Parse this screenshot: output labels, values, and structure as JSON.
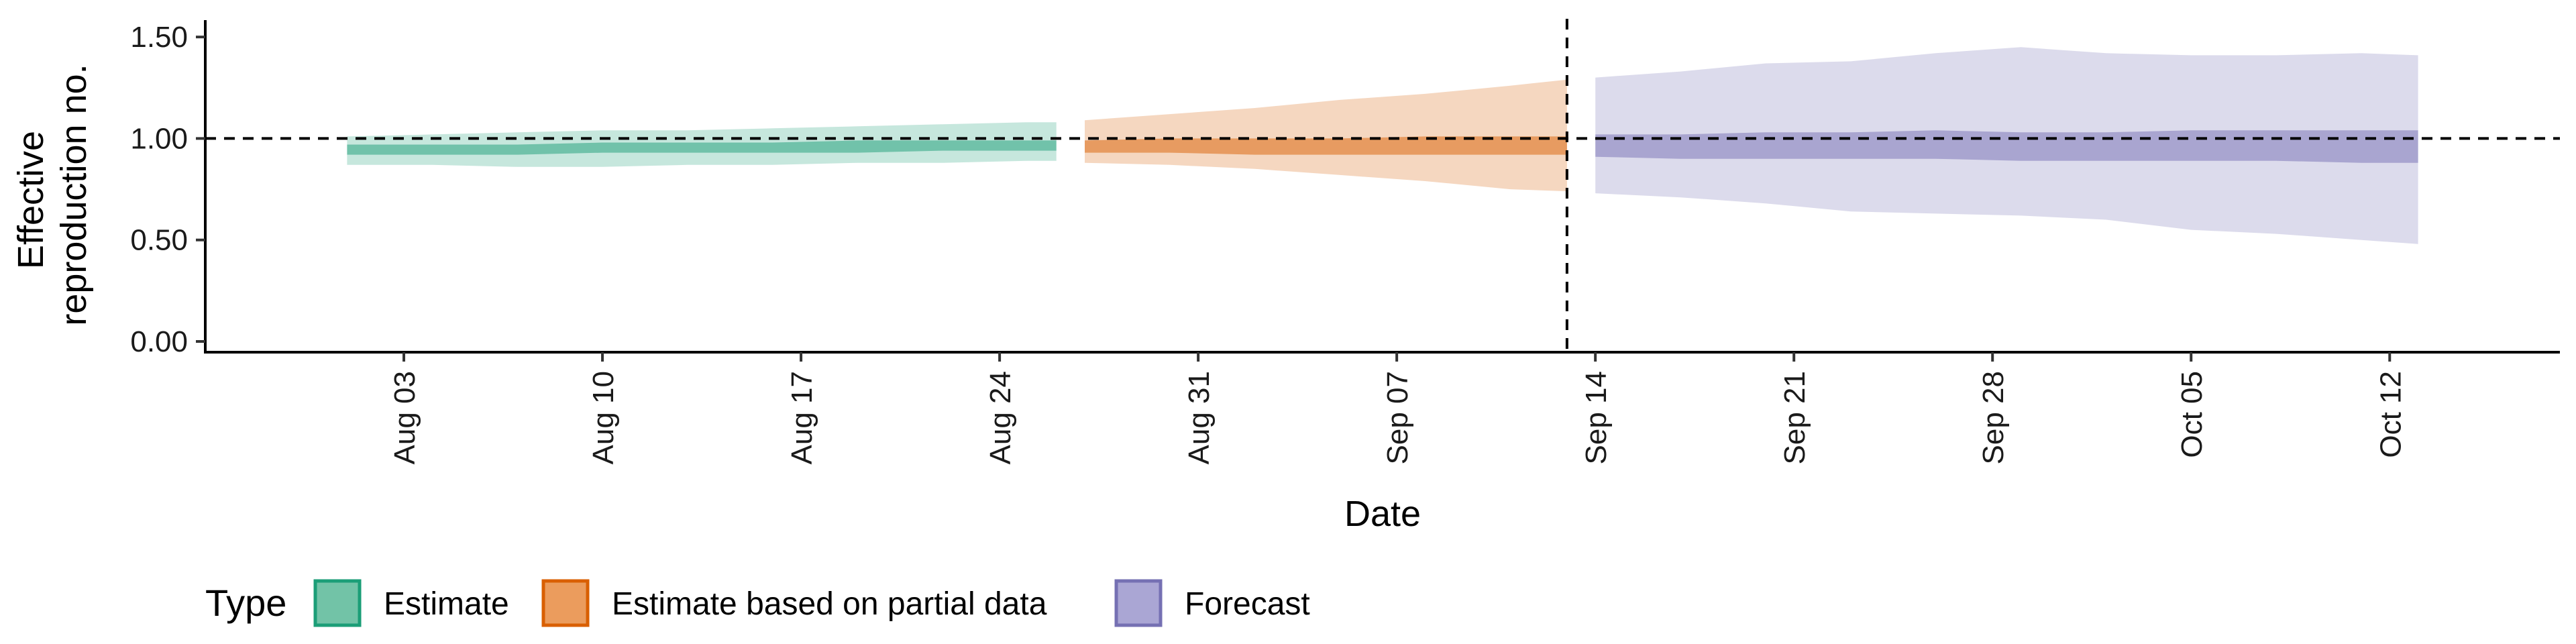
{
  "chart_data": {
    "type": "area",
    "xlabel": "Date",
    "ylabel_lines": [
      "Effective",
      "reproduction no."
    ],
    "ylim": [
      0,
      1.55
    ],
    "xlim": [
      "2020-07-27",
      "2020-10-18"
    ],
    "y_ticks": [
      0.0,
      0.5,
      1.0,
      1.5
    ],
    "y_tick_labels": [
      "0.00",
      "0.50",
      "1.00",
      "1.50"
    ],
    "x_ticks": [
      "2020-08-03",
      "2020-08-10",
      "2020-08-17",
      "2020-08-24",
      "2020-08-31",
      "2020-09-07",
      "2020-09-14",
      "2020-09-21",
      "2020-09-28",
      "2020-10-05",
      "2020-10-12"
    ],
    "x_tick_labels": [
      "Aug 03",
      "Aug 10",
      "Aug 17",
      "Aug 24",
      "Aug 31",
      "Sep 07",
      "Sep 14",
      "Sep 21",
      "Sep 28",
      "Oct 05",
      "Oct 12"
    ],
    "hline": 1.0,
    "vline": "2020-09-13",
    "grid": false,
    "legend": {
      "title": "Type",
      "position": "bottom-left",
      "items": [
        {
          "label": "Estimate",
          "fill": "#72c3a7",
          "stroke": "#1b9e77"
        },
        {
          "label": "Estimate based on partial data",
          "fill": "#eb9c5d",
          "stroke": "#d95f02"
        },
        {
          "label": "Forecast",
          "fill": "#aaa6d4",
          "stroke": "#7570b3"
        }
      ]
    },
    "series": [
      {
        "name": "Estimate",
        "color": "#1b9e77",
        "x": [
          "2020-08-01",
          "2020-08-04",
          "2020-08-07",
          "2020-08-10",
          "2020-08-13",
          "2020-08-16",
          "2020-08-19",
          "2020-08-22",
          "2020-08-25",
          "2020-08-26"
        ],
        "outer_lower": [
          0.87,
          0.87,
          0.86,
          0.86,
          0.87,
          0.87,
          0.88,
          0.88,
          0.89,
          0.89
        ],
        "outer_upper": [
          1.01,
          1.02,
          1.03,
          1.04,
          1.04,
          1.05,
          1.06,
          1.07,
          1.08,
          1.08
        ],
        "inner_lower": [
          0.92,
          0.92,
          0.92,
          0.93,
          0.93,
          0.93,
          0.93,
          0.94,
          0.94,
          0.94
        ],
        "inner_upper": [
          0.97,
          0.97,
          0.97,
          0.98,
          0.98,
          0.98,
          0.99,
          0.99,
          0.99,
          0.99
        ]
      },
      {
        "name": "Estimate based on partial data",
        "color": "#d95f02",
        "x": [
          "2020-08-27",
          "2020-08-30",
          "2020-09-02",
          "2020-09-05",
          "2020-09-08",
          "2020-09-11",
          "2020-09-13"
        ],
        "outer_lower": [
          0.88,
          0.87,
          0.85,
          0.82,
          0.79,
          0.75,
          0.74
        ],
        "outer_upper": [
          1.09,
          1.12,
          1.15,
          1.19,
          1.22,
          1.26,
          1.29
        ],
        "inner_lower": [
          0.93,
          0.93,
          0.92,
          0.92,
          0.92,
          0.92,
          0.92
        ],
        "inner_upper": [
          0.99,
          1.0,
          1.0,
          1.0,
          1.01,
          1.01,
          1.01
        ]
      },
      {
        "name": "Forecast",
        "color": "#7570b3",
        "x": [
          "2020-09-14",
          "2020-09-17",
          "2020-09-20",
          "2020-09-23",
          "2020-09-26",
          "2020-09-29",
          "2020-10-02",
          "2020-10-05",
          "2020-10-08",
          "2020-10-11",
          "2020-10-13"
        ],
        "outer_lower": [
          0.73,
          0.71,
          0.68,
          0.64,
          0.63,
          0.62,
          0.6,
          0.55,
          0.53,
          0.5,
          0.48
        ],
        "outer_upper": [
          1.3,
          1.33,
          1.37,
          1.38,
          1.42,
          1.45,
          1.42,
          1.41,
          1.41,
          1.42,
          1.41
        ],
        "inner_lower": [
          0.91,
          0.9,
          0.9,
          0.9,
          0.9,
          0.89,
          0.89,
          0.89,
          0.89,
          0.88,
          0.88
        ],
        "inner_upper": [
          1.02,
          1.02,
          1.03,
          1.03,
          1.04,
          1.03,
          1.03,
          1.04,
          1.04,
          1.04,
          1.04
        ]
      }
    ]
  }
}
